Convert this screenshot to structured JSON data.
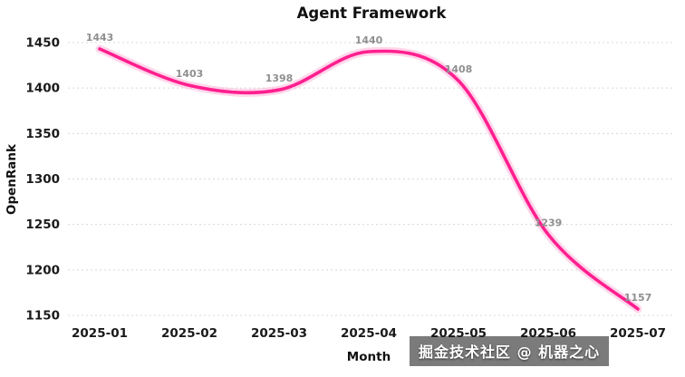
{
  "chart_data": {
    "type": "line",
    "title": "Agent Framework",
    "xlabel": "Month",
    "ylabel": "OpenRank",
    "categories": [
      "2025-01",
      "2025-02",
      "2025-03",
      "2025-04",
      "2025-05",
      "2025-06",
      "2025-07"
    ],
    "values": [
      1443,
      1403,
      1398,
      1440,
      1408,
      1239,
      1157
    ],
    "point_labels": [
      "1443",
      "1403",
      "1398",
      "1440",
      "1408",
      "1239",
      "1157"
    ],
    "ylim": [
      1150,
      1450
    ],
    "yticks": [
      1150,
      1200,
      1250,
      1300,
      1350,
      1400,
      1450
    ],
    "grid": "dashed-horizontal",
    "legend": "none",
    "smoothing": "spline",
    "line_color": "#ff1f8f",
    "glow_color": "#ffaed6",
    "point_label_color": "#8f8f8f",
    "tick_label_color": "#1a1a1a",
    "grid_color": "#d8d8d8"
  },
  "watermark": {
    "text": "掘金技术社区 @ 机器之心"
  }
}
